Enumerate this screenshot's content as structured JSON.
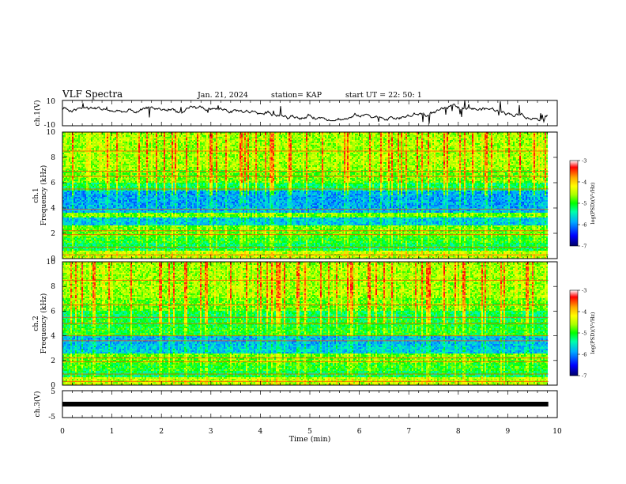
{
  "header": {
    "title": "VLF Spectra",
    "date": "Jan. 21, 2024",
    "station": "station= KAP",
    "start": "start  UT =   22: 50: 1"
  },
  "chart_data": [
    {
      "type": "line",
      "panel": "ch1-waveform",
      "ylabel": "ch.1(V)",
      "ylim": [
        -10,
        10
      ],
      "yticks": [
        "10",
        "-10"
      ],
      "xlim": [
        0,
        10
      ],
      "data_extent_min": 9.82,
      "color": "#000000",
      "level_v": 0,
      "noise_amplitude_v": 8
    },
    {
      "type": "heatmap",
      "panel": "ch1-spectrogram",
      "ylabel": "ch.1",
      "ylabel2": "Frequency (kHz)",
      "ylim": [
        0,
        10
      ],
      "yticks": [
        "0",
        "2",
        "4",
        "6",
        "8",
        "10"
      ],
      "xlim": [
        0,
        10
      ],
      "colorbar": {
        "label": "log(PSD)(V²/Hz)",
        "range": [
          -7,
          -3
        ],
        "ticks": [
          "-3",
          "-4",
          "-5",
          "-6",
          "-7"
        ],
        "colors": [
          "#000066",
          "#0000ff",
          "#00aaff",
          "#00ffaa",
          "#00ff00",
          "#aaff00",
          "#ffff00",
          "#ffaa00",
          "#ff0000",
          "#ffffff"
        ]
      }
    },
    {
      "type": "heatmap",
      "panel": "ch2-spectrogram",
      "ylabel": "ch.2",
      "ylabel2": "Frequency (kHz)",
      "ylim": [
        0,
        10
      ],
      "yticks": [
        "0",
        "2",
        "4",
        "6",
        "8",
        "10"
      ],
      "xlim": [
        0,
        10
      ],
      "colorbar": {
        "label": "log(PSD)(V²/Hz)",
        "range": [
          -7,
          -3
        ],
        "ticks": [
          "-3",
          "-4",
          "-5",
          "-6",
          "-7"
        ],
        "colors": [
          "#000066",
          "#0000ff",
          "#00aaff",
          "#00ffaa",
          "#00ff00",
          "#aaff00",
          "#ffff00",
          "#ffaa00",
          "#ff0000",
          "#ffffff"
        ]
      }
    },
    {
      "type": "line",
      "panel": "ch3-waveform",
      "ylabel": "ch.3(V)",
      "ylim": [
        -5,
        5
      ],
      "yticks": [
        "5",
        "-5"
      ],
      "xlim": [
        0,
        10
      ],
      "data_extent_min": 9.82,
      "color": "#000000",
      "level_v": 0
    }
  ],
  "xaxis": {
    "label": "Time (min)",
    "ticks": [
      "0",
      "1",
      "2",
      "3",
      "4",
      "5",
      "6",
      "7",
      "8",
      "9",
      "10"
    ]
  }
}
